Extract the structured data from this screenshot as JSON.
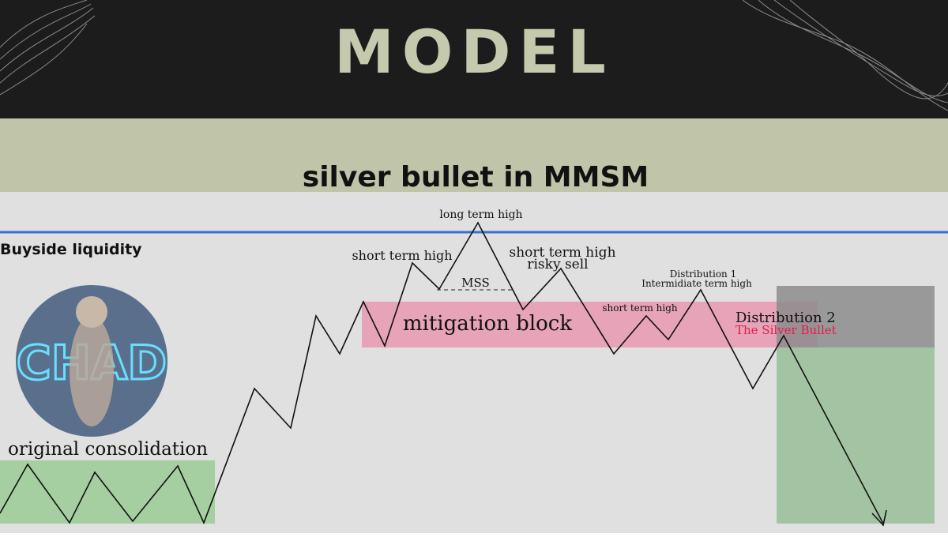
{
  "header": {
    "title": "MODEL",
    "subtitle": "silver bullet in MMSM"
  },
  "labels": {
    "buyside": "Buyside liquidity",
    "long_high": "long term high",
    "short_high_1": "short term high",
    "short_high_2": "short term high",
    "risky": "risky sell",
    "mss": "MSS",
    "mitigation": "mitigation block",
    "dist1": "Distribution 1",
    "intermediate": "Intermidiate term high",
    "short_high_3": "short term high",
    "dist2": "Distribution 2",
    "silver": "The Silver Bullet",
    "consolidation": "original consolidation"
  },
  "image": {
    "sign": "CHAD"
  }
}
